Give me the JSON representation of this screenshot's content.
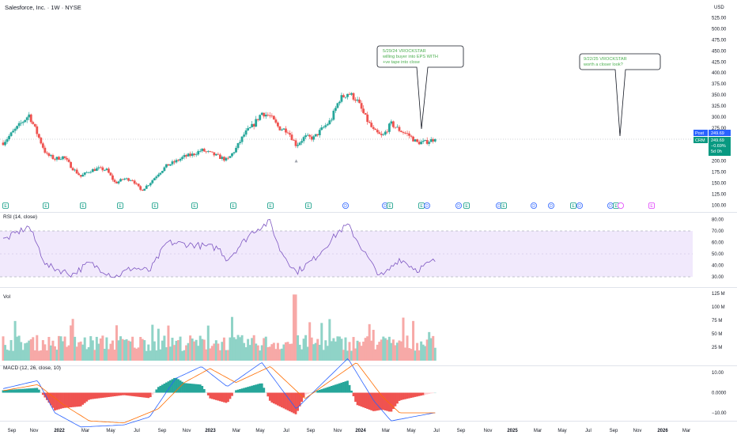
{
  "header": {
    "title": "Salesforce, Inc. · 1W · NYSE",
    "currency": "USD"
  },
  "colors": {
    "up": "#26a69a",
    "down": "#ef5350",
    "vol_up": "#8fd3c7",
    "vol_down": "#f7a9a7",
    "rsi_line": "#7e57c2",
    "rsi_band": "#f1e9fc",
    "macd_line": "#2962ff",
    "signal_line": "#ff6d00",
    "earn": "#089981",
    "div": "#2962ff",
    "future": "#e040fb",
    "note_text": "#4caf50"
  },
  "price_axis": {
    "ticks": [
      "525.00",
      "500.00",
      "475.00",
      "450.00",
      "425.00",
      "400.00",
      "375.00",
      "350.00",
      "325.00",
      "300.00",
      "275.00",
      "250.00",
      "225.00",
      "200.00",
      "175.00",
      "150.00",
      "125.00",
      "100.00"
    ],
    "post_label": "Post",
    "post_value": "249.69",
    "symbol": "CRM",
    "last_value": "249.69",
    "change": "−0.69%",
    "countdown": "5d 0h"
  },
  "time_axis": [
    "Sep",
    "Nov",
    "2022",
    "Mar",
    "May",
    "Jul",
    "Sep",
    "Nov",
    "2023",
    "Mar",
    "May",
    "Jul",
    "Sep",
    "Nov",
    "2024",
    "Mar",
    "May",
    "Jul",
    "Sep",
    "Nov",
    "2025",
    "Mar",
    "May",
    "Jul",
    "Sep",
    "Nov",
    "2026",
    "Mar"
  ],
  "annotations": [
    {
      "lines": [
        "5/29/24 VROCKSTAR",
        "willing buyer into EPS WITH",
        "+ve tape into close"
      ]
    },
    {
      "lines": [
        "9/22/25 VROCKSTAR",
        "worth a closer look?"
      ]
    }
  ],
  "events": [
    "E",
    "E",
    "E",
    "E",
    "E",
    "E",
    "E",
    "E",
    "E",
    "D",
    "D",
    "E",
    "E",
    "D",
    "D",
    "E",
    "D",
    "E",
    "D",
    "D",
    "E",
    "D",
    "D",
    "E"
  ],
  "rsi": {
    "label": "RSI (14, close)",
    "ticks": [
      "80.00",
      "70.00",
      "60.00",
      "50.00",
      "40.00",
      "30.00"
    ]
  },
  "volume": {
    "label": "Vol",
    "ticks": [
      "125 M",
      "100 M",
      "75 M",
      "50 M",
      "25 M"
    ]
  },
  "macd": {
    "label": "MACD (12, 26, close, 10)",
    "ticks": [
      "10.00",
      "0.0000",
      "−10.00"
    ]
  },
  "chart_data": [
    {
      "type": "candlestick",
      "title": "Salesforce, Inc. · 1W · NYSE",
      "ylabel": "USD",
      "ylim": [
        100,
        537
      ],
      "x_range": [
        "2021-08",
        "2026-03"
      ],
      "key_points": [
        {
          "x": "2021-08",
          "close": 242
        },
        {
          "x": "2021-11",
          "close": 305
        },
        {
          "x": "2021-12",
          "close": 260
        },
        {
          "x": "2022-01",
          "close": 215
        },
        {
          "x": "2022-02",
          "close": 205
        },
        {
          "x": "2022-03",
          "close": 210
        },
        {
          "x": "2022-04",
          "close": 185
        },
        {
          "x": "2022-05",
          "close": 165
        },
        {
          "x": "2022-06",
          "close": 178
        },
        {
          "x": "2022-07",
          "close": 183
        },
        {
          "x": "2022-08",
          "close": 180
        },
        {
          "x": "2022-09",
          "close": 150
        },
        {
          "x": "2022-10",
          "close": 160
        },
        {
          "x": "2022-11",
          "close": 158
        },
        {
          "x": "2022-12",
          "close": 133
        },
        {
          "x": "2023-01",
          "close": 150
        },
        {
          "x": "2023-02",
          "close": 172
        },
        {
          "x": "2023-03",
          "close": 190
        },
        {
          "x": "2023-04",
          "close": 199
        },
        {
          "x": "2023-05",
          "close": 210
        },
        {
          "x": "2023-06",
          "close": 215
        },
        {
          "x": "2023-07",
          "close": 225
        },
        {
          "x": "2023-08",
          "close": 218
        },
        {
          "x": "2023-09",
          "close": 210
        },
        {
          "x": "2023-10",
          "close": 202
        },
        {
          "x": "2023-11",
          "close": 228
        },
        {
          "x": "2023-12",
          "close": 262
        },
        {
          "x": "2024-01",
          "close": 281
        },
        {
          "x": "2024-02",
          "close": 310
        },
        {
          "x": "2024-03",
          "close": 301
        },
        {
          "x": "2024-04",
          "close": 275
        },
        {
          "x": "2024-05",
          "close": 270
        },
        {
          "x": "2024-06",
          "close": 236
        },
        {
          "x": "2024-07",
          "close": 255
        },
        {
          "x": "2024-08",
          "close": 252
        },
        {
          "x": "2024-09",
          "close": 273
        },
        {
          "x": "2024-10",
          "close": 292
        },
        {
          "x": "2024-11",
          "close": 340
        },
        {
          "x": "2024-12",
          "close": 355
        },
        {
          "x": "2025-01",
          "close": 340
        },
        {
          "x": "2025-02",
          "close": 300
        },
        {
          "x": "2025-03",
          "close": 268
        },
        {
          "x": "2025-04",
          "close": 255
        },
        {
          "x": "2025-05",
          "close": 285
        },
        {
          "x": "2025-06",
          "close": 270
        },
        {
          "x": "2025-07",
          "close": 260
        },
        {
          "x": "2025-08",
          "close": 242
        },
        {
          "x": "2025-09",
          "close": 243
        },
        {
          "x": "2025-10",
          "close": 249.69
        }
      ]
    },
    {
      "type": "line",
      "title": "RSI (14, close)",
      "ylim": [
        25,
        82
      ],
      "key_points": [
        {
          "x": "2021-08",
          "y": 62
        },
        {
          "x": "2021-11",
          "y": 74
        },
        {
          "x": "2022-01",
          "y": 40
        },
        {
          "x": "2022-04",
          "y": 32
        },
        {
          "x": "2022-06",
          "y": 42
        },
        {
          "x": "2022-09",
          "y": 30
        },
        {
          "x": "2022-11",
          "y": 38
        },
        {
          "x": "2023-01",
          "y": 35
        },
        {
          "x": "2023-03",
          "y": 60
        },
        {
          "x": "2023-06",
          "y": 58
        },
        {
          "x": "2023-09",
          "y": 55
        },
        {
          "x": "2023-10",
          "y": 45
        },
        {
          "x": "2024-01",
          "y": 70
        },
        {
          "x": "2024-03",
          "y": 78
        },
        {
          "x": "2024-04",
          "y": 55
        },
        {
          "x": "2024-06",
          "y": 34
        },
        {
          "x": "2024-08",
          "y": 45
        },
        {
          "x": "2024-11",
          "y": 70
        },
        {
          "x": "2024-12",
          "y": 75
        },
        {
          "x": "2025-03",
          "y": 38
        },
        {
          "x": "2025-04",
          "y": 30
        },
        {
          "x": "2025-06",
          "y": 46
        },
        {
          "x": "2025-08",
          "y": 36
        },
        {
          "x": "2025-10",
          "y": 44
        }
      ]
    },
    {
      "type": "bar",
      "title": "Vol",
      "ylabel": "Volume",
      "ylim": [
        0,
        125000000
      ],
      "notes": "weekly volume, typical 25M–75M; spike ≈ 123M week of 2024-05-30"
    },
    {
      "type": "line",
      "title": "MACD (12, 26, close, 10)",
      "series": [
        {
          "name": "MACD",
          "key_points": [
            {
              "x": "2021-08",
              "y": 2
            },
            {
              "x": "2021-12",
              "y": 6
            },
            {
              "x": "2022-02",
              "y": -10
            },
            {
              "x": "2022-05",
              "y": -17
            },
            {
              "x": "2022-10",
              "y": -16
            },
            {
              "x": "2023-01",
              "y": -12
            },
            {
              "x": "2023-04",
              "y": 7
            },
            {
              "x": "2023-07",
              "y": 13
            },
            {
              "x": "2023-10",
              "y": 3
            },
            {
              "x": "2024-02",
              "y": 15
            },
            {
              "x": "2024-06",
              "y": -8
            },
            {
              "x": "2024-12",
              "y": 17
            },
            {
              "x": "2025-03",
              "y": -4
            },
            {
              "x": "2025-05",
              "y": -14
            },
            {
              "x": "2025-10",
              "y": -10
            }
          ]
        },
        {
          "name": "Signal",
          "key_points": [
            {
              "x": "2021-08",
              "y": 1
            },
            {
              "x": "2021-12",
              "y": 4
            },
            {
              "x": "2022-03",
              "y": -6
            },
            {
              "x": "2022-06",
              "y": -14
            },
            {
              "x": "2022-10",
              "y": -15
            },
            {
              "x": "2023-02",
              "y": -8
            },
            {
              "x": "2023-05",
              "y": 5
            },
            {
              "x": "2023-08",
              "y": 12
            },
            {
              "x": "2023-11",
              "y": 5
            },
            {
              "x": "2024-03",
              "y": 13
            },
            {
              "x": "2024-07",
              "y": -3
            },
            {
              "x": "2025-01",
              "y": 15
            },
            {
              "x": "2025-04",
              "y": -2
            },
            {
              "x": "2025-06",
              "y": -10
            },
            {
              "x": "2025-10",
              "y": -10
            }
          ]
        }
      ],
      "histogram": "red bars below zero during declines, green above zero during rallies",
      "ylim": [
        -17,
        17
      ]
    }
  ]
}
